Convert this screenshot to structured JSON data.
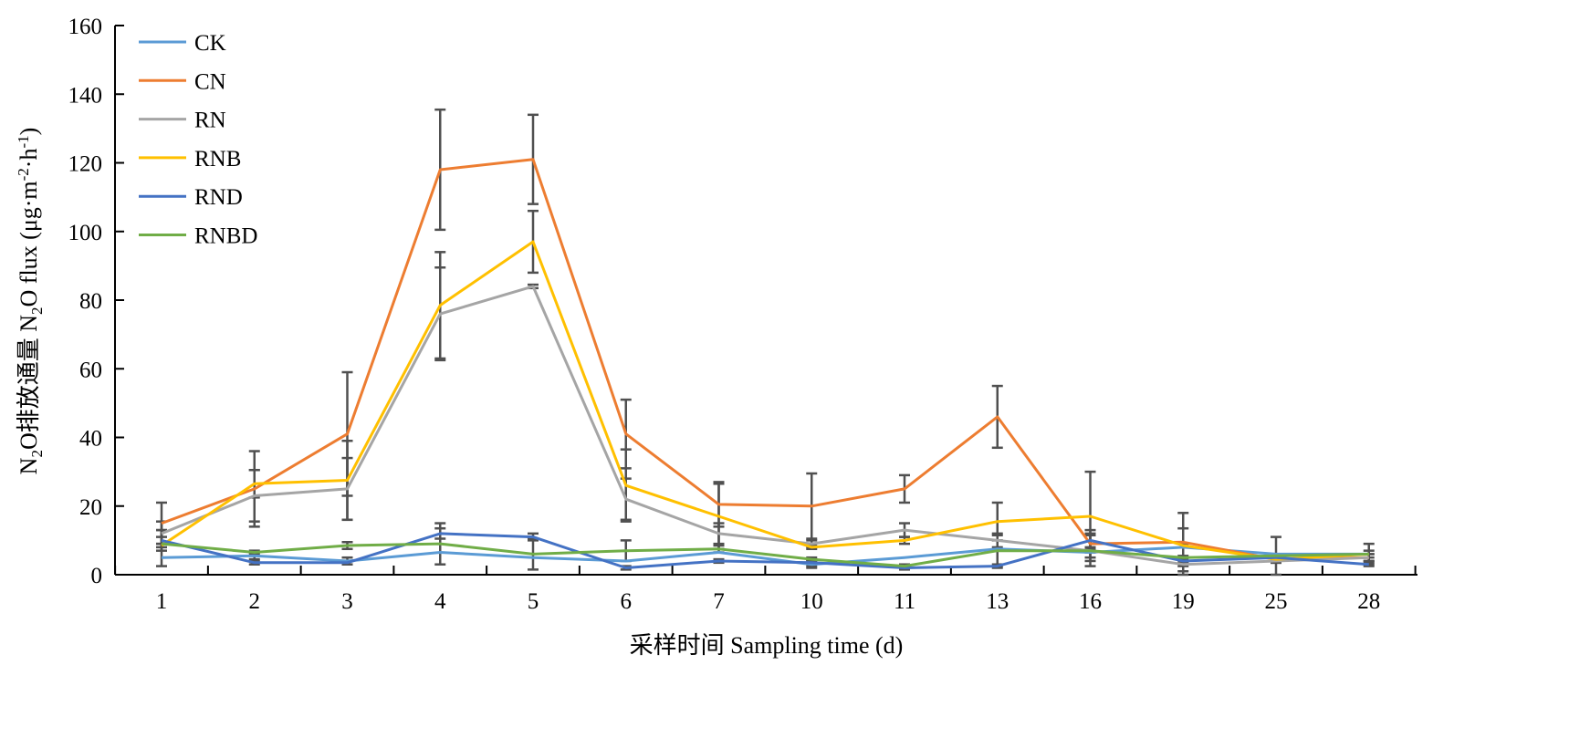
{
  "chart_data": {
    "type": "line",
    "title": "",
    "xlabel": "采样时间 Sampling time (d)",
    "ylabel_parts": [
      "N",
      "2",
      "O排放通量 N",
      "2",
      "O flux (μg·m",
      "-2",
      "·h",
      "-1",
      ")"
    ],
    "categories": [
      "1",
      "2",
      "3",
      "4",
      "5",
      "6",
      "7",
      "10",
      "11",
      "13",
      "16",
      "19",
      "25",
      "28"
    ],
    "ylim": [
      0,
      160
    ],
    "yticks": [
      0,
      20,
      40,
      60,
      80,
      100,
      120,
      140,
      160
    ],
    "grid": false,
    "legend_position": "top-left",
    "series": [
      {
        "name": "CK",
        "color": "#5B9BD5",
        "values": [
          5,
          5.5,
          4,
          6.5,
          5,
          4,
          6.5,
          3,
          5,
          7.5,
          6.5,
          8,
          6,
          6
        ],
        "errors": [
          0,
          1,
          1,
          0,
          0,
          0,
          0,
          1,
          0,
          0,
          0,
          0,
          0,
          0
        ]
      },
      {
        "name": "CN",
        "color": "#ED7D31",
        "values": [
          15,
          25,
          41,
          118,
          121,
          41,
          20.5,
          20,
          25,
          46,
          9,
          9.5,
          4.5,
          5
        ],
        "errors": [
          6,
          11,
          18,
          17.5,
          13,
          10,
          6.5,
          9.5,
          4,
          9,
          4,
          4,
          1,
          1
        ]
      },
      {
        "name": "RN",
        "color": "#A5A5A5",
        "values": [
          12,
          23,
          25,
          76,
          84,
          22,
          12,
          9,
          13,
          10,
          7,
          3,
          4,
          5
        ],
        "errors": [
          1,
          7.5,
          9,
          13.5,
          0.5,
          6,
          3,
          1,
          2,
          2,
          0.5,
          0.5,
          0.5,
          1
        ]
      },
      {
        "name": "RNB",
        "color": "#FFC000",
        "values": [
          8.5,
          26.5,
          27.5,
          78.5,
          97,
          26,
          17,
          8,
          10,
          15.5,
          17,
          8.5,
          4.5,
          6
        ],
        "errors": [
          0.5,
          4,
          11.5,
          15.5,
          9,
          10.5,
          9.5,
          0.5,
          1,
          5.5,
          13,
          9.5,
          1,
          1
        ]
      },
      {
        "name": "RND",
        "color": "#4472C4",
        "values": [
          10,
          3.5,
          3.5,
          12,
          11,
          2,
          4,
          3.5,
          2,
          2.5,
          10,
          4,
          5,
          3
        ],
        "errors": [
          3,
          0.5,
          0.5,
          1.5,
          1,
          0.5,
          0.5,
          1,
          0.5,
          0.5,
          2,
          0.5,
          0.5,
          0.5
        ]
      },
      {
        "name": "RNBD",
        "color": "#70AD47",
        "values": [
          9,
          6.5,
          8.5,
          9,
          6,
          7,
          7.5,
          4.5,
          2.5,
          7,
          7,
          5,
          5.5,
          6
        ],
        "errors": [
          6.5,
          0.5,
          1,
          6,
          4.5,
          3,
          1,
          0.5,
          0.5,
          4.5,
          4.5,
          4,
          5.5,
          3
        ]
      }
    ]
  },
  "style": {
    "axis_color": "#000000",
    "errorbar_color": "#505050"
  }
}
